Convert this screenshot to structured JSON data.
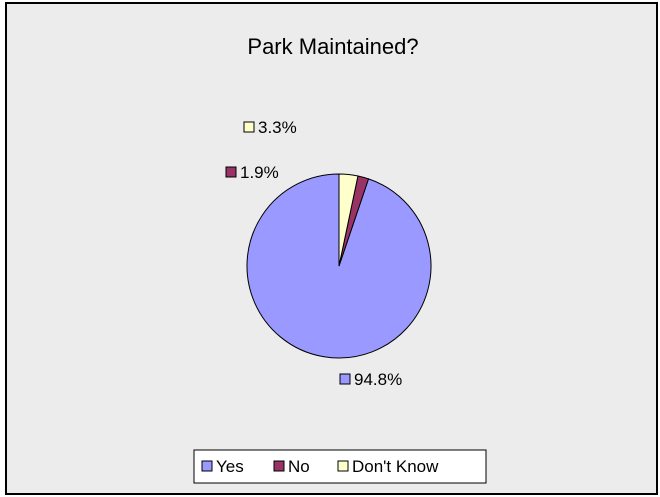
{
  "chart_data": {
    "type": "pie",
    "title": "Park Maintained?",
    "categories": [
      "Yes",
      "No",
      "Don't Know"
    ],
    "values": [
      94.8,
      1.9,
      3.3
    ],
    "data_labels": [
      "94.8%",
      "1.9%",
      "3.3%"
    ],
    "colors": [
      "#9999ff",
      "#993366",
      "#ffffcc"
    ],
    "start_angle_deg": 0,
    "direction": "counterclockwise",
    "legend": {
      "position": "bottom",
      "entries": [
        "Yes",
        "No",
        "Don't Know"
      ]
    },
    "plot_background": "#ececec"
  }
}
